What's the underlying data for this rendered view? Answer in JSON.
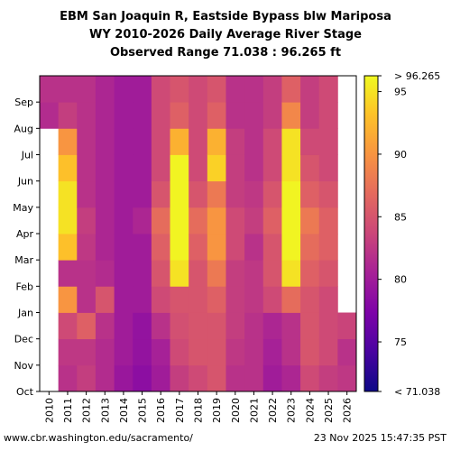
{
  "title_lines": [
    "EBM San Joaquin R, Eastside Bypass blw Mariposa",
    "WY 2010-2026 Daily Average River Stage",
    "Observed Range 71.038 : 96.265 ft"
  ],
  "footer": {
    "left": "www.cbr.washington.edu/sacramento/",
    "right": "23 Nov 2025 15:47:35 PST"
  },
  "chart_data": {
    "type": "heatmap",
    "x_label_title": "",
    "y_label_title": "",
    "years": [
      "2010",
      "2011",
      "2012",
      "2013",
      "2014",
      "2015",
      "2016",
      "2017",
      "2018",
      "2019",
      "2020",
      "2021",
      "2022",
      "2023",
      "2024",
      "2025",
      "2026"
    ],
    "months": [
      "Oct",
      "Nov",
      "Dec",
      "Jan",
      "Feb",
      "Mar",
      "Apr",
      "May",
      "Jun",
      "Jul",
      "Aug",
      "Sep"
    ],
    "value_units": "ft",
    "color_scale": {
      "min": 71.038,
      "max": 96.265,
      "ticks": [
        75,
        80,
        85,
        90,
        95
      ],
      "min_label": "< 71.038",
      "max_label": "> 96.265",
      "colormap": "plasma"
    },
    "monthly_mean_stage_estimates": [
      [
        null,
        null,
        null,
        null,
        null,
        null,
        null,
        null,
        null,
        null,
        81.5,
        82.0
      ],
      [
        82.0,
        82.5,
        84.0,
        90.0,
        82.0,
        93.0,
        95.0,
        95.0,
        93.0,
        90.0,
        83.0,
        82.0
      ],
      [
        83.0,
        82.5,
        86.0,
        82.0,
        82.0,
        82.5,
        83.0,
        82.0,
        82.0,
        82.0,
        82.0,
        82.0
      ],
      [
        81.5,
        81.5,
        82.0,
        85.0,
        81.5,
        81.0,
        81.0,
        81.0,
        81.0,
        81.0,
        81.0,
        81.0
      ],
      [
        79.5,
        80.0,
        80.0,
        80.0,
        80.0,
        80.0,
        80.0,
        80.0,
        80.0,
        80.0,
        80.0,
        80.0
      ],
      [
        78.5,
        79.0,
        79.0,
        80.0,
        80.0,
        80.0,
        81.0,
        80.0,
        80.0,
        80.0,
        80.0,
        80.0
      ],
      [
        80.0,
        80.5,
        82.0,
        84.0,
        85.0,
        86.0,
        87.0,
        85.0,
        84.0,
        84.0,
        84.0,
        84.0
      ],
      [
        83.0,
        84.0,
        84.5,
        85.0,
        95.0,
        96.0,
        96.0,
        96.0,
        96.0,
        92.0,
        86.0,
        85.0
      ],
      [
        84.0,
        85.0,
        85.0,
        85.0,
        85.0,
        86.0,
        87.0,
        85.0,
        84.0,
        84.0,
        84.0,
        84.0
      ],
      [
        85.0,
        85.0,
        85.0,
        86.0,
        88.0,
        90.0,
        90.0,
        88.0,
        94.0,
        92.0,
        86.0,
        85.0
      ],
      [
        82.0,
        82.5,
        83.0,
        83.0,
        83.0,
        84.0,
        84.0,
        83.0,
        83.0,
        83.0,
        82.0,
        82.0
      ],
      [
        82.0,
        82.0,
        82.0,
        82.5,
        82.5,
        82.0,
        83.0,
        82.5,
        82.0,
        82.0,
        82.0,
        82.0
      ],
      [
        80.0,
        80.5,
        81.0,
        84.0,
        85.0,
        85.0,
        86.0,
        85.0,
        84.0,
        84.0,
        83.0,
        83.0
      ],
      [
        81.0,
        82.0,
        82.0,
        87.0,
        95.0,
        96.0,
        96.0,
        96.0,
        95.0,
        95.0,
        89.0,
        86.0
      ],
      [
        84.0,
        85.0,
        85.0,
        85.0,
        86.0,
        87.0,
        88.0,
        86.0,
        85.0,
        84.0,
        83.0,
        83.0
      ],
      [
        83.0,
        84.0,
        84.0,
        84.0,
        85.0,
        86.0,
        86.0,
        85.0,
        84.0,
        84.0,
        84.0,
        84.0
      ],
      [
        82.5,
        82.0,
        83.5,
        null,
        null,
        null,
        null,
        null,
        null,
        null,
        null,
        null
      ]
    ]
  }
}
